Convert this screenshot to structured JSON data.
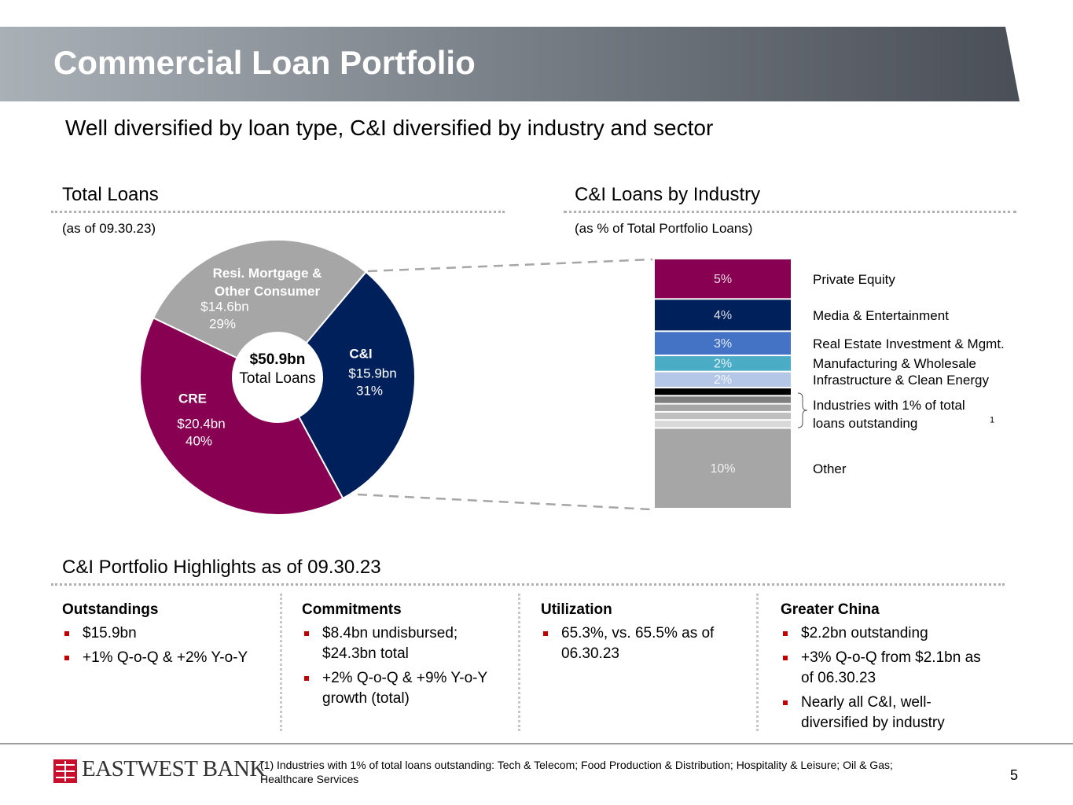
{
  "header": {
    "title": "Commercial Loan Portfolio"
  },
  "subtitle": "Well diversified by loan type, C&I diversified by industry and sector",
  "chart_data": [
    {
      "type": "pie",
      "title": "Total Loans",
      "subtitle": "(as of 09.30.23)",
      "categories": [
        "C&I",
        "CRE",
        "Resi. Mortgage & Other Consumer"
      ],
      "values": [
        31,
        40,
        29
      ],
      "value_labels": [
        "31%",
        "40%",
        "29%"
      ],
      "amount_labels": [
        "$15.9bn",
        "$20.4bn",
        "$14.6bn"
      ],
      "colors": [
        "#00205b",
        "#870051",
        "#a6a6a6"
      ],
      "center_label": [
        "$50.9bn",
        "Total Loans"
      ]
    },
    {
      "type": "stacked-bar",
      "title": "C&I Loans by Industry",
      "subtitle": "(as % of Total Portfolio Loans)",
      "categories": [
        "Private Equity",
        "Media & Entertainment",
        "Real Estate Investment & Mgmt.",
        "Manufacturing & Wholesale",
        "Infrastructure & Clean Energy",
        null,
        null,
        null,
        null,
        null,
        "Other"
      ],
      "values": [
        5,
        4,
        3,
        2,
        2,
        1,
        1,
        1,
        1,
        1,
        10
      ],
      "value_labels": [
        "5%",
        "4%",
        "3%",
        "2%",
        "2%",
        null,
        null,
        null,
        null,
        null,
        "10%"
      ],
      "colors": [
        "#870051",
        "#00205b",
        "#4472c4",
        "#4bacc6",
        "#b4c7e7",
        "#000000",
        "#7f7f7f",
        "#a6a6a6",
        "#bfbfbf",
        "#d9d9d9",
        "#a6a6a6"
      ],
      "bracket_label": "Industries with 1% of total loans outstanding",
      "bracket_note": "1"
    }
  ],
  "highlights": {
    "title": "C&I Portfolio Highlights as of 09.30.23",
    "columns": [
      {
        "heading": "Outstandings",
        "bullets": [
          "$15.9bn",
          "+1% Q-o-Q & +2% Y-o-Y"
        ]
      },
      {
        "heading": "Commitments",
        "bullets": [
          "$8.4bn undisbursed; $24.3bn total",
          "+2% Q-o-Q & +9% Y-o-Y growth (total)"
        ]
      },
      {
        "heading": "Utilization",
        "bullets": [
          "65.3%, vs. 65.5% as of 06.30.23"
        ]
      },
      {
        "heading": "Greater China",
        "bullets": [
          "$2.2bn outstanding",
          "+3% Q-o-Q from $2.1bn as of 06.30.23",
          "Nearly all C&I, well-diversified by industry"
        ]
      }
    ]
  },
  "footer": {
    "logo": "EASTWEST BANK",
    "footnote": "(1) Industries with 1% of total loans outstanding: Tech & Telecom; Food Production & Distribution; Hospitality & Leisure; Oil & Gas; Healthcare Services",
    "page_number": "5"
  }
}
